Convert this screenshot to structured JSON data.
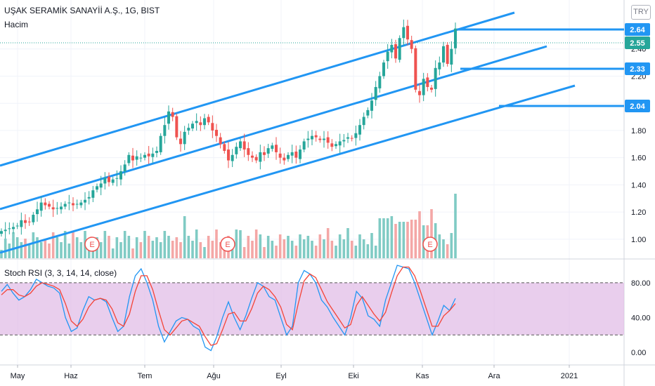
{
  "header": {
    "title": "UŞAK SERAMİK SANAYİİ A.Ş., 1G, BIST",
    "volume_label": "Hacim",
    "currency": "TRY"
  },
  "colors": {
    "up": "#26a69a",
    "down": "#ef5350",
    "up_volume": "#80cbc4",
    "down_volume": "#f4a7a6",
    "channel": "#2196f3",
    "stoch_k": "#2196f3",
    "stoch_d": "#f44336",
    "rsi_band": "#e1bee7",
    "axis_text": "#131722",
    "grid": "#f0f3fa"
  },
  "chart_data": [
    {
      "type": "candlestick",
      "title": "UŞAK SERAMİK SANAYİİ A.Ş., 1G, BIST",
      "x_ticks": [
        "May",
        "Haz",
        "Tem",
        "Ağu",
        "Eyl",
        "Eki",
        "Kas",
        "Ara",
        "2021"
      ],
      "y_ticks": [
        "2.40",
        "2.20",
        "2.00",
        "1.80",
        "1.60",
        "1.40",
        "1.20",
        "1.00"
      ],
      "ylim": [
        0.86,
        2.76
      ],
      "price_badges": [
        {
          "value": "2.64",
          "style": "line"
        },
        {
          "value": "2.55",
          "style": "current"
        },
        {
          "value": "2.33",
          "style": "line"
        },
        {
          "value": "2.04",
          "style": "line"
        }
      ],
      "earnings_markers": [
        "E",
        "E",
        "E"
      ],
      "closes": [
        1.06,
        1.07,
        1.08,
        1.09,
        1.1,
        1.14,
        1.12,
        1.13,
        1.18,
        1.22,
        1.27,
        1.25,
        1.24,
        1.22,
        1.23,
        1.24,
        1.26,
        1.27,
        1.25,
        1.26,
        1.27,
        1.29,
        1.31,
        1.36,
        1.39,
        1.41,
        1.45,
        1.42,
        1.44,
        1.45,
        1.5,
        1.55,
        1.62,
        1.58,
        1.61,
        1.6,
        1.62,
        1.61,
        1.63,
        1.65,
        1.76,
        1.84,
        1.94,
        1.9,
        1.75,
        1.7,
        1.79,
        1.82,
        1.85,
        1.87,
        1.84,
        1.89,
        1.86,
        1.8,
        1.76,
        1.7,
        1.65,
        1.58,
        1.62,
        1.68,
        1.72,
        1.66,
        1.62,
        1.6,
        1.58,
        1.64,
        1.62,
        1.67,
        1.69,
        1.64,
        1.6,
        1.58,
        1.62,
        1.64,
        1.6,
        1.66,
        1.72,
        1.74,
        1.76,
        1.75,
        1.73,
        1.74,
        1.71,
        1.68,
        1.7,
        1.72,
        1.73,
        1.75,
        1.74,
        1.78,
        1.84,
        1.9,
        1.95,
        2.02,
        2.12,
        2.2,
        2.3,
        2.38,
        2.43,
        2.33,
        2.48,
        2.56,
        2.47,
        2.4,
        2.1,
        2.06,
        2.18,
        2.12,
        2.1,
        2.26,
        2.3,
        2.42,
        2.29,
        2.4,
        2.55
      ],
      "volume_label": "Hacim"
    },
    {
      "type": "line",
      "title": "Stoch RSI (3, 3, 14, 14, close)",
      "y_ticks": [
        "80.00",
        "40.00",
        "0.00"
      ],
      "ylim": [
        -8,
        100
      ],
      "band": [
        20,
        80
      ],
      "series": [
        {
          "values": [
            70,
            78,
            68,
            60,
            64,
            72,
            84,
            80,
            76,
            74,
            68,
            40,
            24,
            28,
            48,
            64,
            60,
            62,
            58,
            40,
            24,
            30,
            64,
            88,
            96,
            80,
            60,
            30,
            12,
            24,
            36,
            40,
            38,
            30,
            26,
            6,
            2,
            18,
            40,
            58,
            40,
            26,
            42,
            62,
            80,
            76,
            64,
            60,
            40,
            20,
            30,
            80,
            94,
            90,
            80,
            60,
            52,
            40,
            30,
            20,
            40,
            70,
            62,
            42,
            38,
            30,
            60,
            80,
            100,
            98,
            96,
            80,
            60,
            40,
            20,
            36,
            54,
            48,
            62
          ]
        },
        {
          "values": [
            66,
            72,
            72,
            66,
            64,
            68,
            76,
            80,
            78,
            76,
            72,
            56,
            36,
            30,
            38,
            52,
            60,
            62,
            60,
            50,
            34,
            30,
            44,
            70,
            88,
            88,
            72,
            48,
            26,
            20,
            28,
            36,
            38,
            34,
            30,
            18,
            8,
            10,
            26,
            44,
            46,
            36,
            36,
            50,
            68,
            76,
            72,
            64,
            52,
            32,
            26,
            56,
            82,
            90,
            86,
            72,
            58,
            48,
            38,
            28,
            32,
            54,
            64,
            54,
            44,
            36,
            46,
            68,
            88,
            98,
            98,
            88,
            70,
            50,
            30,
            30,
            42,
            48,
            56
          ]
        }
      ]
    }
  ],
  "rsi": {
    "title": "Stoch RSI (3, 3, 14, 14, close)"
  }
}
